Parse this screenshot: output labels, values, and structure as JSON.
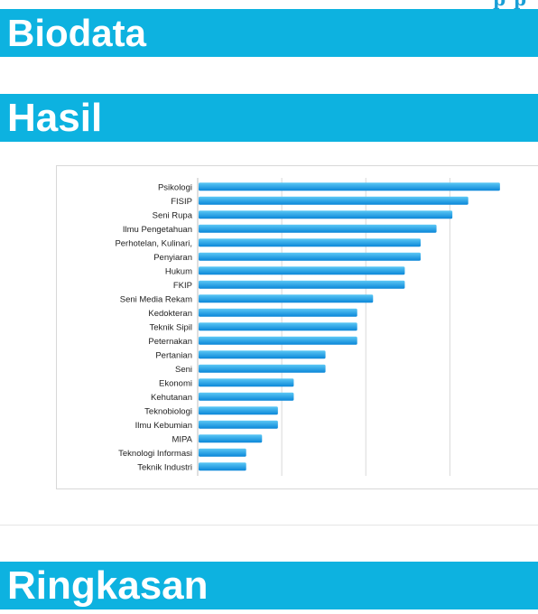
{
  "header_fragment": "p  p",
  "sections": {
    "biodata": "Biodata",
    "hasil": "Hasil",
    "ringkasan": "Ringkasan"
  },
  "colors": {
    "banner": "#0db2e0",
    "bar_top": "#5cc8f5",
    "bar_bottom": "#0a86d8",
    "grid": "#d9d9d9"
  },
  "chart_data": {
    "type": "bar",
    "orientation": "horizontal",
    "categories": [
      "Psikologi",
      "FISIP",
      "Seni Rupa",
      "Ilmu Pengetahuan",
      "Perhotelan, Kulinari,",
      "Penyiaran",
      "Hukum",
      "FKIP",
      "Seni Media Rekam",
      "Kedokteran",
      "Teknik Sipil",
      "Peternakan",
      "Pertanian",
      "Seni",
      "Ekonomi",
      "Kehutanan",
      "Teknobiologi",
      "Ilmu Kebumian",
      "MIPA",
      "Teknologi Informasi",
      "Teknik Industri"
    ],
    "values": [
      19,
      17,
      16,
      15,
      14,
      14,
      13,
      13,
      11,
      10,
      10,
      10,
      8,
      8,
      6,
      6,
      5,
      5,
      4,
      3,
      3
    ],
    "xlim": [
      0,
      21
    ],
    "x_gridlines": [
      5.3,
      10.6,
      15.9
    ],
    "grid": true,
    "legend": "none"
  }
}
